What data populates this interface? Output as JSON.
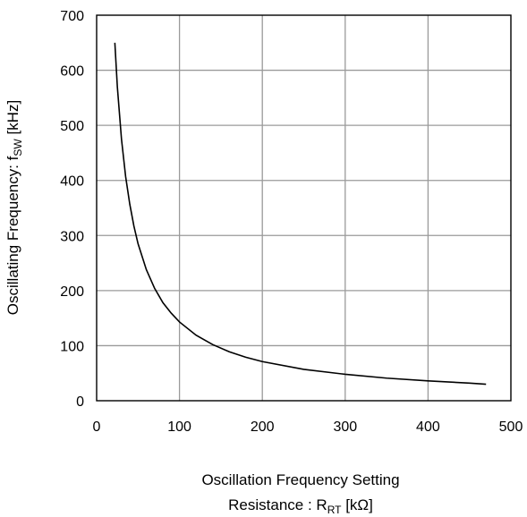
{
  "chart_data": {
    "type": "line",
    "title": "",
    "xlabel": {
      "line1": "Oscillation Frequency Setting",
      "line2_prefix": "Resistance : R",
      "line2_sub": "RT",
      "line2_suffix": " [kΩ]"
    },
    "ylabel": {
      "prefix": "Oscillating Frequency: f",
      "sub": "SW",
      "suffix": " [kHz]"
    },
    "xlim": [
      0,
      500
    ],
    "ylim": [
      0,
      700
    ],
    "xticks": [
      0,
      100,
      200,
      300,
      400,
      500
    ],
    "yticks": [
      0,
      100,
      200,
      300,
      400,
      500,
      600,
      700
    ],
    "grid": true,
    "line_color": "#000000",
    "grid_color": "#9a9a9a",
    "series": [
      {
        "x": [
          22,
          25,
          30,
          35,
          40,
          45,
          50,
          60,
          70,
          80,
          90,
          100,
          120,
          140,
          160,
          180,
          200,
          250,
          300,
          350,
          400,
          450,
          470
        ],
        "y": [
          650,
          570,
          475,
          407,
          357,
          317,
          285,
          238,
          204,
          178,
          159,
          143,
          119,
          102,
          89,
          79,
          71,
          57,
          48,
          41,
          36,
          32,
          30
        ]
      }
    ]
  }
}
